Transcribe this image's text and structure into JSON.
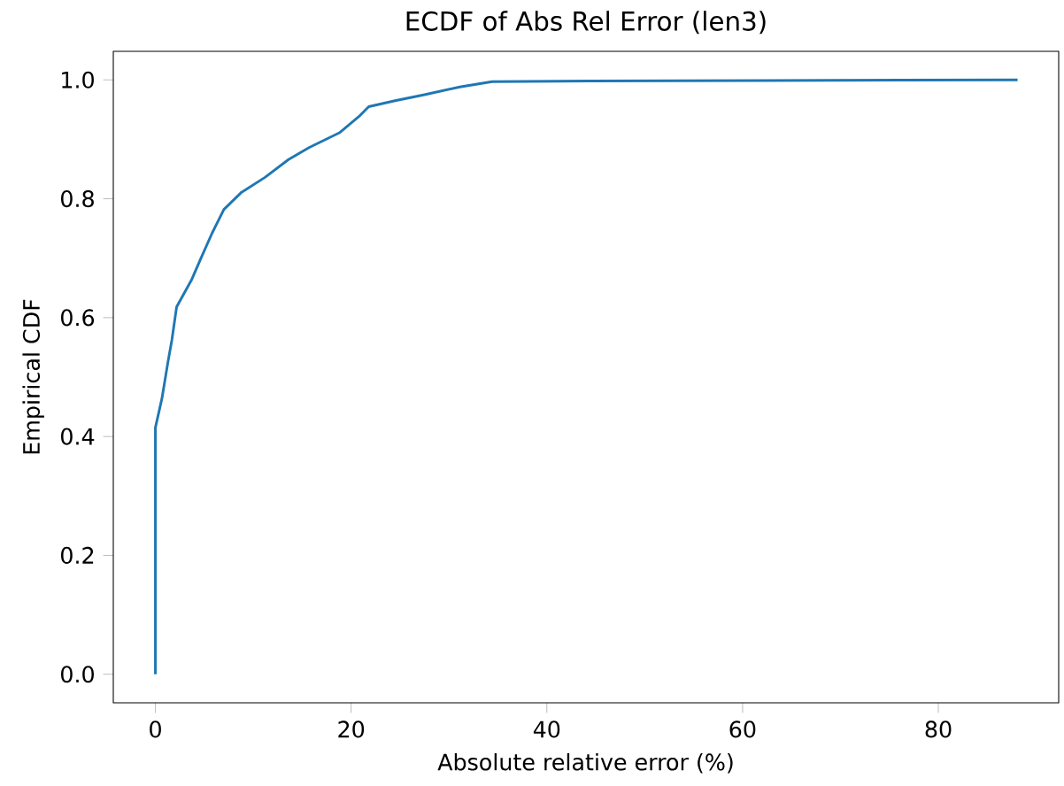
{
  "chart_data": {
    "type": "step",
    "title": "ECDF of Abs Rel Error (len3)",
    "xlabel": "Absolute relative error (%)",
    "ylabel": "Empirical CDF",
    "series": [
      {
        "color": "#1f77b4",
        "x": [
          0,
          0,
          0.67,
          1.27,
          1.69,
          2.17,
          3.68,
          4.58,
          5.79,
          7.0,
          8.81,
          11.2,
          13.6,
          15.7,
          18.8,
          20.9,
          21.8,
          24.5,
          27.5,
          31.1,
          34.4,
          44.4,
          62.5,
          88.1
        ],
        "values": [
          0,
          0.415,
          0.464,
          0.524,
          0.563,
          0.618,
          0.663,
          0.697,
          0.742,
          0.782,
          0.811,
          0.836,
          0.866,
          0.886,
          0.911,
          0.94,
          0.955,
          0.965,
          0.975,
          0.988,
          0.997,
          0.998,
          0.999,
          1.0
        ]
      }
    ],
    "xlim": [
      -4.3,
      92.3
    ],
    "ylim": [
      -0.048,
      1.048
    ],
    "xticks": [
      0,
      20,
      40,
      60,
      80
    ],
    "yticks": [
      {
        "value": 0,
        "label": "0.0"
      },
      {
        "value": 0.2,
        "label": "0.2"
      },
      {
        "value": 0.4,
        "label": "0.4"
      },
      {
        "value": 0.6,
        "label": "0.6"
      },
      {
        "value": 0.8,
        "label": "0.8"
      },
      {
        "value": 1,
        "label": "1.0"
      }
    ],
    "grid": false
  }
}
